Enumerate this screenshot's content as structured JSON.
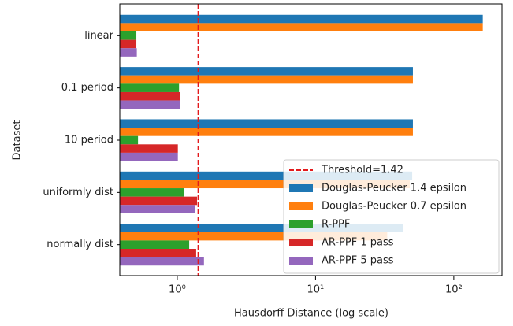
{
  "chart_data": {
    "type": "barh",
    "xlabel": "Hausdorff Distance (log scale)",
    "ylabel": "Dataset",
    "categories": [
      "linear",
      "0.1 period",
      "10 period",
      "uniformly dist",
      "normally dist"
    ],
    "series": [
      {
        "name": "Douglas-Peucker 1.4 epsilon",
        "color": "#1f77b4",
        "values": [
          162,
          50.6,
          50.6,
          50,
          43
        ]
      },
      {
        "name": "Douglas-Peucker 0.7 epsilon",
        "color": "#ff7f0e",
        "values": [
          162,
          50.6,
          50.6,
          48,
          33
        ]
      },
      {
        "name": "R-PPF",
        "color": "#2ca02c",
        "values": [
          0.506,
          1.03,
          0.52,
          1.12,
          1.22
        ]
      },
      {
        "name": "AR-PPF 1 pass",
        "color": "#d62728",
        "values": [
          0.506,
          1.05,
          1.01,
          1.39,
          1.37
        ]
      },
      {
        "name": "AR-PPF 5 pass",
        "color": "#9467bd",
        "values": [
          0.51,
          1.05,
          1.01,
          1.35,
          1.56
        ]
      }
    ],
    "threshold": {
      "value": 1.42,
      "label": "Threshold=1.42",
      "color": "#e31a1c"
    },
    "xscale": "log",
    "xlim": [
      0.384,
      223
    ],
    "xticks": [
      {
        "value": 1,
        "label": "10⁰"
      },
      {
        "value": 10,
        "label": "10¹"
      },
      {
        "value": 100,
        "label": "10²"
      }
    ],
    "legend": "lower right"
  }
}
